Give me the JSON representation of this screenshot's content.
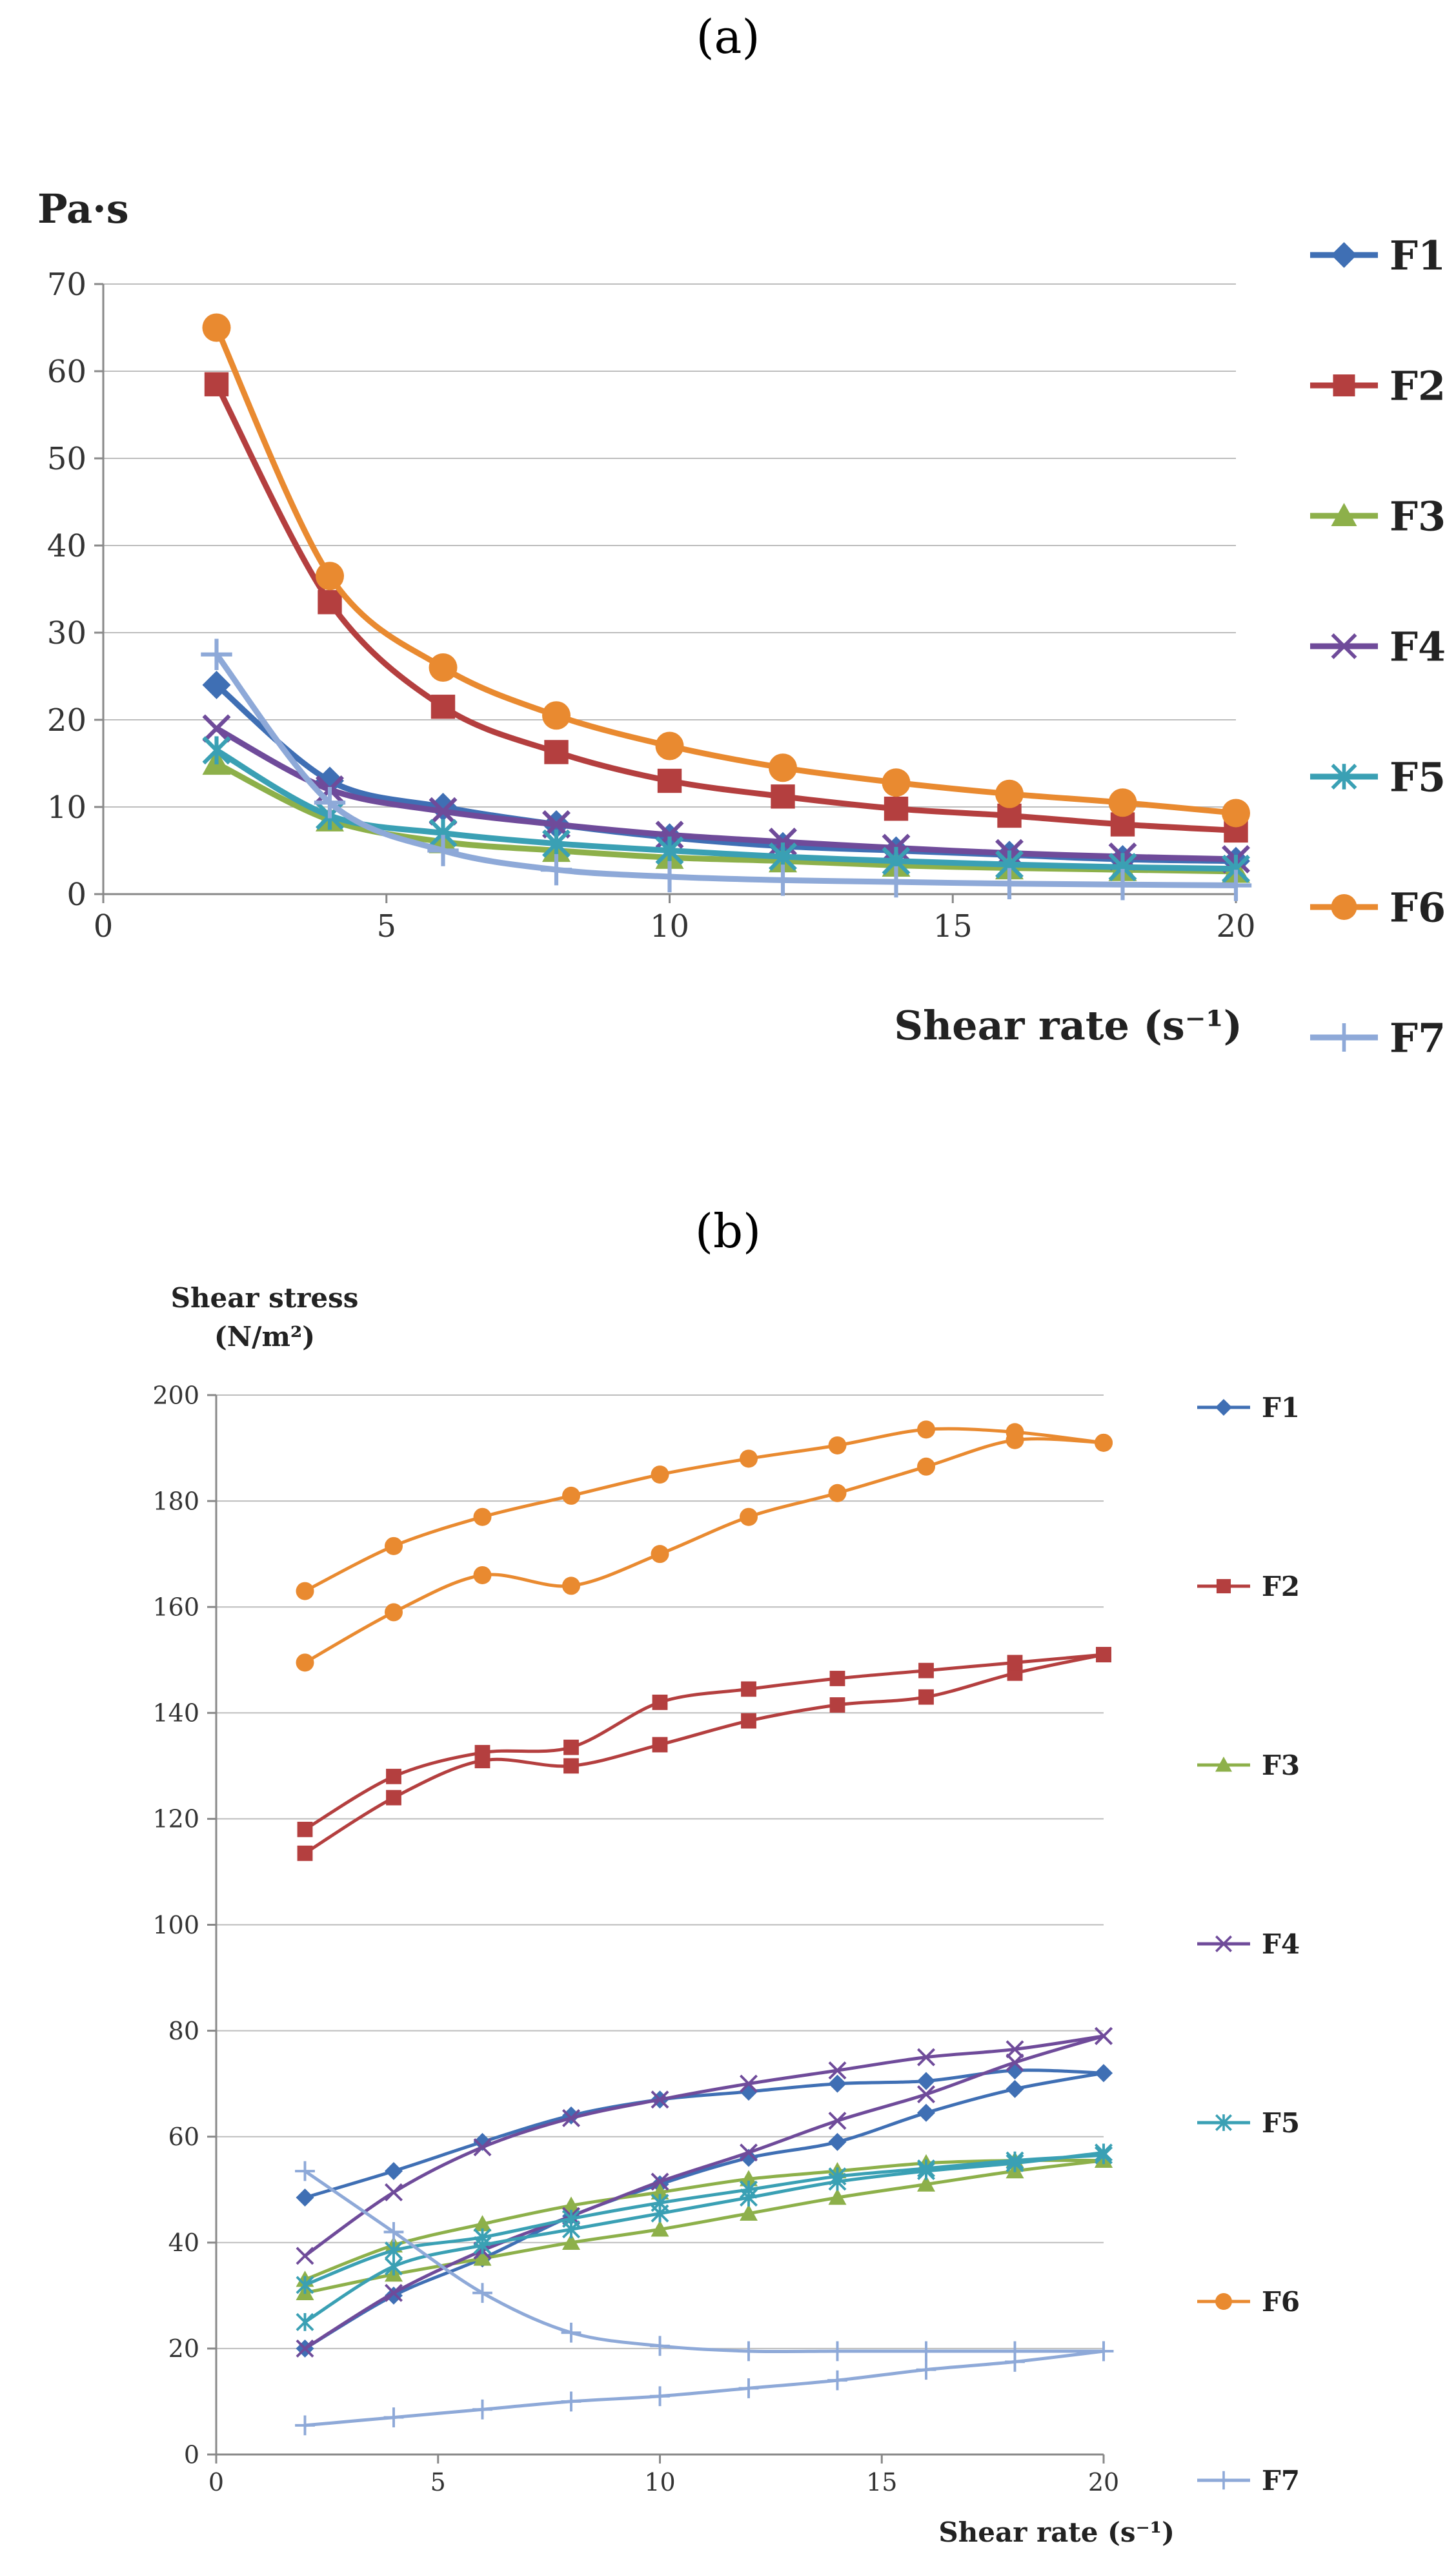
{
  "chart_data": [
    {
      "panel_label": "(a)",
      "type": "line",
      "ylabel": "Pa·s",
      "xlabel": "Shear rate (s⁻¹)",
      "xlim": [
        0,
        20
      ],
      "ylim": [
        0,
        70
      ],
      "x_ticks": [
        0,
        5,
        10,
        15,
        20
      ],
      "y_ticks": [
        0,
        10,
        20,
        30,
        40,
        50,
        60,
        70
      ],
      "grid": true,
      "legend": "right",
      "x": [
        2,
        4,
        6,
        8,
        10,
        12,
        14,
        16,
        18,
        20
      ],
      "series": [
        {
          "name": "F1",
          "color": "#3f6fb4",
          "marker": "diamond",
          "values": [
            24,
            13,
            10,
            8,
            6.5,
            5.5,
            5,
            4.5,
            4,
            3.8
          ]
        },
        {
          "name": "F2",
          "color": "#b43f3f",
          "marker": "square",
          "values": [
            58.5,
            33.5,
            21.5,
            16.3,
            13,
            11.2,
            9.8,
            9,
            8,
            7.3
          ]
        },
        {
          "name": "F3",
          "color": "#8db04a",
          "marker": "triangle",
          "values": [
            15,
            8.5,
            6,
            5,
            4.2,
            3.8,
            3.3,
            3,
            2.8,
            2.6
          ]
        },
        {
          "name": "F4",
          "color": "#6f4b9a",
          "marker": "x",
          "values": [
            19,
            12,
            9.5,
            8,
            6.8,
            6,
            5.3,
            4.7,
            4.3,
            4
          ]
        },
        {
          "name": "F5",
          "color": "#3aa0b4",
          "marker": "star",
          "values": [
            16.5,
            9,
            7,
            5.8,
            5,
            4.3,
            3.8,
            3.4,
            3.1,
            2.9
          ]
        },
        {
          "name": "F6",
          "color": "#e98a30",
          "marker": "circle",
          "values": [
            65,
            36.5,
            26,
            20.5,
            17,
            14.5,
            12.8,
            11.5,
            10.5,
            9.3
          ]
        },
        {
          "name": "F7",
          "color": "#8ea9d8",
          "marker": "plus",
          "values": [
            27.5,
            10.5,
            5,
            2.8,
            2,
            1.6,
            1.4,
            1.2,
            1.1,
            1
          ]
        }
      ]
    },
    {
      "panel_label": "(b)",
      "type": "line",
      "ylabel": "Shear stress",
      "ylabel_unit": "(N/m²)",
      "xlabel": "Shear rate (s⁻¹)",
      "xlim": [
        0,
        20
      ],
      "ylim": [
        0,
        200
      ],
      "x_ticks": [
        0,
        5,
        10,
        15,
        20
      ],
      "y_ticks": [
        0,
        20,
        40,
        60,
        80,
        100,
        120,
        140,
        160,
        180,
        200
      ],
      "grid": true,
      "legend": "right",
      "x": [
        2,
        4,
        6,
        8,
        10,
        12,
        14,
        16,
        18,
        20
      ],
      "series": [
        {
          "name": "F1",
          "color": "#3f6fb4",
          "marker": "diamond",
          "up": [
            20,
            30,
            37,
            45,
            51,
            56,
            59,
            64.5,
            69,
            72
          ],
          "down": [
            48.5,
            53.5,
            59,
            64,
            67,
            68.5,
            70,
            70.5,
            72.5,
            72
          ]
        },
        {
          "name": "F2",
          "color": "#b43f3f",
          "marker": "square",
          "up": [
            113.5,
            124,
            131,
            130,
            134,
            138.5,
            141.5,
            143,
            147.5,
            151
          ],
          "down": [
            118,
            128,
            132.5,
            133.5,
            142,
            144.5,
            146.5,
            148,
            149.5,
            151
          ]
        },
        {
          "name": "F3",
          "color": "#8db04a",
          "marker": "triangle",
          "up": [
            30.5,
            34,
            37,
            40,
            42.5,
            45.5,
            48.5,
            51,
            53.5,
            55.5
          ],
          "down": [
            33,
            39.5,
            43.5,
            47,
            49.5,
            52,
            53.5,
            55,
            55.5,
            55.5
          ]
        },
        {
          "name": "F4",
          "color": "#6f4b9a",
          "marker": "x",
          "up": [
            20,
            30.5,
            38.5,
            45,
            51.5,
            57,
            63,
            68,
            74,
            79
          ],
          "down": [
            37.5,
            49.5,
            58,
            63.5,
            67,
            70,
            72.5,
            75,
            76.5,
            79
          ]
        },
        {
          "name": "F5",
          "color": "#3aa0b4",
          "marker": "star",
          "up": [
            25,
            35.5,
            39.5,
            42.5,
            45.5,
            48.5,
            51.5,
            53.5,
            55,
            57
          ],
          "down": [
            32,
            38.5,
            41,
            44.5,
            47.5,
            50,
            52.5,
            54,
            55.5,
            56.5
          ]
        },
        {
          "name": "F6",
          "color": "#e98a30",
          "marker": "circle",
          "up": [
            149.5,
            159,
            166,
            164,
            170,
            177,
            181.5,
            186.5,
            191.5,
            191
          ],
          "down": [
            163,
            171.5,
            177,
            181,
            185,
            188,
            190.5,
            193.5,
            193,
            191
          ]
        },
        {
          "name": "F7",
          "color": "#8ea9d8",
          "marker": "plus",
          "up": [
            5.5,
            7,
            8.5,
            10,
            11,
            12.5,
            14,
            16,
            17.5,
            19.5
          ],
          "down": [
            53.5,
            42,
            30.5,
            23,
            20.5,
            19.5,
            19.5,
            19.5,
            19.5,
            19.5
          ]
        }
      ]
    }
  ]
}
